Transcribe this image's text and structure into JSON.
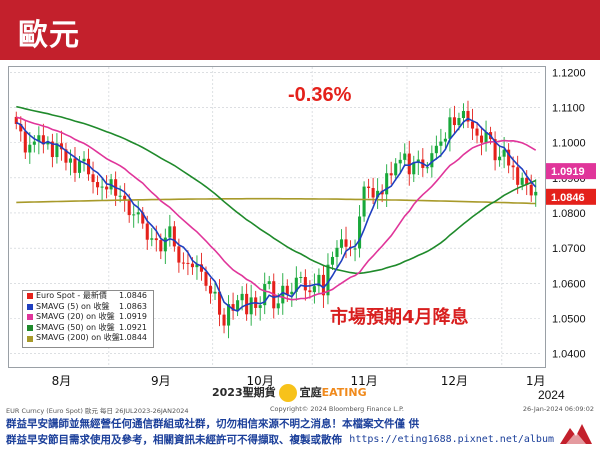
{
  "header": {
    "title": "歐元"
  },
  "change_label": "-0.36%",
  "annotation": "市場預期4月降息",
  "legend": [
    {
      "label": "Euro Spot - 最新價",
      "value": "1.0846",
      "color": "#e4211b"
    },
    {
      "label": "SMAVG (5)  on 收盤",
      "value": "1.0863",
      "color": "#1f3fbf"
    },
    {
      "label": "SMAVG (20)  on 收盤",
      "value": "1.0919",
      "color": "#e0359a"
    },
    {
      "label": "SMAVG (50)  on 收盤",
      "value": "1.0921",
      "color": "#1f8a2b"
    },
    {
      "label": "SMAVG (200)  on 收盤",
      "value": "1.0844",
      "color": "#a89a2a"
    }
  ],
  "footer": {
    "source_left": "EUR Curncy (Euro Spot) 歐元   每日 26JUL2023-26JAN2024",
    "source_mid": "Copyright© 2024 Bloomberg Finance L.P.",
    "source_right": "26-Jan-2024 06:09:02",
    "disclaimer_1": "群益早安講師並無經營任何通信群組或社群，切勿相信來源不明之消息！本檔案文件僅 供",
    "disclaimer_2": "群益早安節目需求使用及參考，相關資訊未經許可不得擷取、複製或散佈"
  },
  "watermark": {
    "left": "2023",
    "middle": "聖期貨",
    "right": "宜庭",
    "brand": "EATING"
  },
  "url": "https://eting1688.pixnet.net/album",
  "chart_data": {
    "type": "candlestick",
    "x_tick_labels": [
      "8月",
      "9月",
      "10月",
      "11月",
      "12月",
      "1月"
    ],
    "x_year_label": "2024",
    "ylim": [
      1.0365,
      1.1215
    ],
    "y_ticks": [
      1.04,
      1.05,
      1.06,
      1.07,
      1.08,
      1.09,
      1.1,
      1.11,
      1.12
    ],
    "y_tick_labels": [
      "1.0400",
      "1.0500",
      "1.0600",
      "1.0700",
      "1.0800",
      "1.0900",
      "1.1000",
      "1.1100",
      "1.1200"
    ],
    "price_tags": [
      {
        "value": 1.0919,
        "label": "1.0919",
        "color": "#e0359a"
      },
      {
        "value": 1.0846,
        "label": "1.0846",
        "color": "#e4211b"
      }
    ],
    "series": [
      {
        "name": "Euro Spot - 最新價",
        "color": "#e4211b",
        "close": [
          1.1053,
          1.1032,
          1.0972,
          1.0994,
          1.1003,
          1.1021,
          1.0995,
          1.1003,
          1.0959,
          1.0998,
          1.0981,
          1.0943,
          1.0955,
          1.0914,
          1.0947,
          1.0954,
          1.091,
          1.0888,
          1.0873,
          1.0875,
          1.0867,
          1.0896,
          1.0849,
          1.0849,
          1.0836,
          1.0794,
          1.0796,
          1.0802,
          1.077,
          1.0724,
          1.0728,
          1.0723,
          1.0691,
          1.073,
          1.0762,
          1.0705,
          1.0659,
          1.0658,
          1.0656,
          1.0646,
          1.0654,
          1.0633,
          1.0593,
          1.0571,
          1.0576,
          1.0511,
          1.048,
          1.0541,
          1.0522,
          1.0552,
          1.057,
          1.0512,
          1.056,
          1.053,
          1.0538,
          1.0598,
          1.0606,
          1.0529,
          1.0543,
          1.0593,
          1.0569,
          1.0576,
          1.0616,
          1.0618,
          1.058,
          1.0575,
          1.0592,
          1.0624,
          1.0566,
          1.0653,
          1.0675,
          1.0701,
          1.0725,
          1.0704,
          1.0699,
          1.0699,
          1.079,
          1.0875,
          1.0871,
          1.0844,
          1.0863,
          1.0853,
          1.0913,
          1.0907,
          1.0941,
          1.0951,
          1.0969,
          1.091,
          1.0944,
          1.0952,
          1.0928,
          1.093,
          1.097,
          1.0991,
          1.1003,
          1.1011,
          1.1072,
          1.105,
          1.107,
          1.109,
          1.106,
          1.104,
          1.102,
          1.1,
          1.103,
          1.101,
          1.095,
          1.096,
          1.098,
          1.0935,
          1.093,
          1.088,
          1.09,
          1.088,
          1.085,
          1.086
        ]
      },
      {
        "name": "SMAVG (5)  on 收盤",
        "color": "#1f3fbf"
      },
      {
        "name": "SMAVG (20)  on 收盤",
        "color": "#e0359a"
      },
      {
        "name": "SMAVG (50)  on 收盤",
        "color": "#1f8a2b"
      },
      {
        "name": "SMAVG (200)  on 收盤",
        "color": "#a89a2a"
      }
    ]
  }
}
